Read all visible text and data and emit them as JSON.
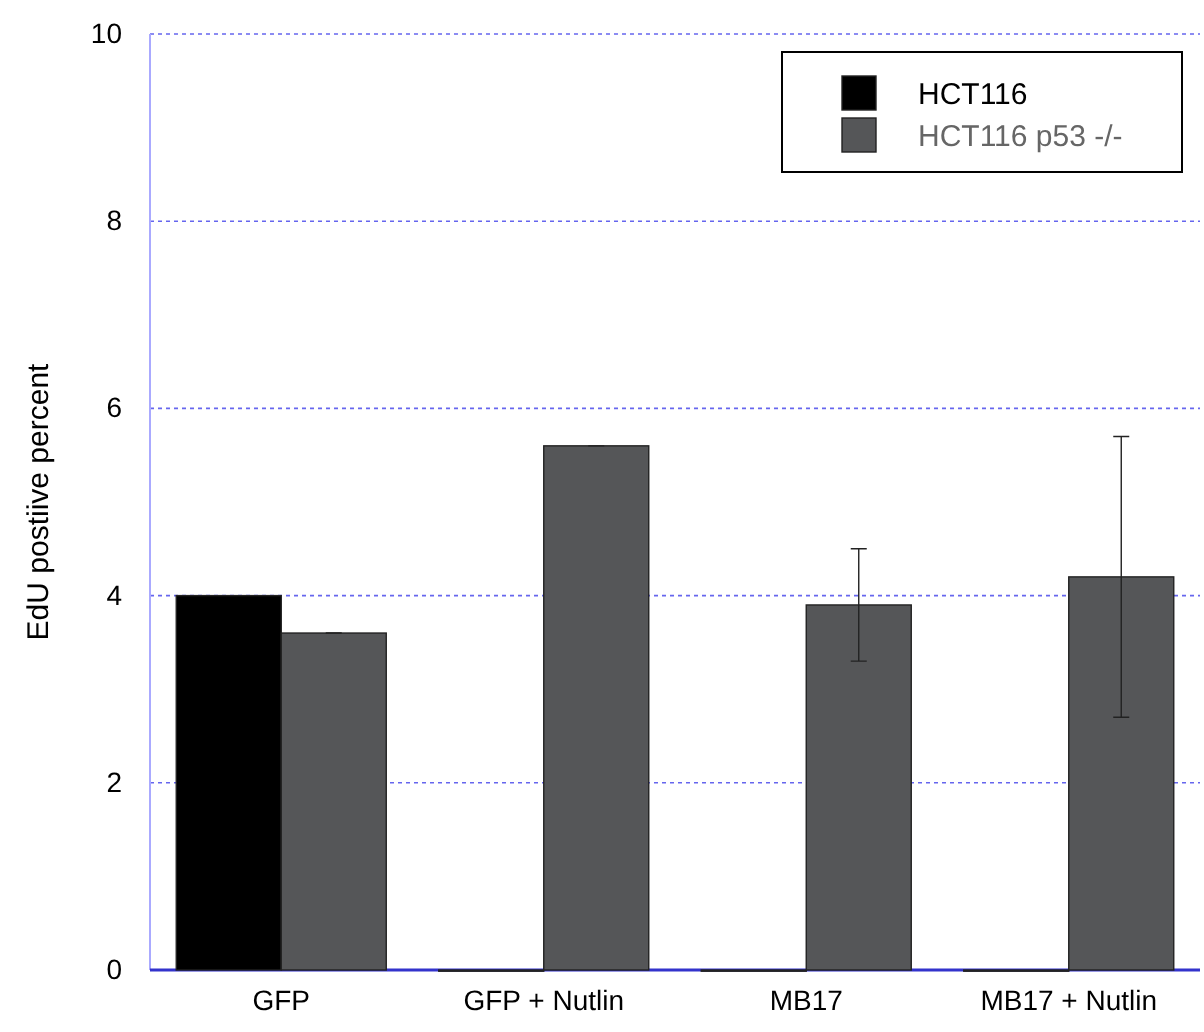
{
  "chart_data": {
    "type": "bar",
    "ylabel": "EdU postiive percent",
    "categories": [
      "GFP",
      "GFP + Nutlin",
      "MB17",
      "MB17 + Nutlin"
    ],
    "series": [
      {
        "name": "HCT116",
        "color": "#000000",
        "values": [
          4.0,
          0,
          0,
          0
        ]
      },
      {
        "name": "HCT116 p53 -/-",
        "color": "#555658",
        "values": [
          3.6,
          5.6,
          3.9,
          4.2
        ],
        "errors": [
          0,
          0,
          0.6,
          1.5
        ]
      }
    ],
    "ylim": [
      0,
      10
    ],
    "yticks": [
      0,
      2,
      4,
      6,
      8,
      10
    ],
    "grid": "y",
    "legend": "top right"
  }
}
